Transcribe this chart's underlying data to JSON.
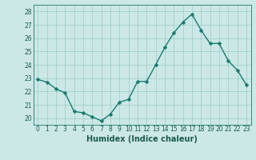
{
  "x": [
    0,
    1,
    2,
    3,
    4,
    5,
    6,
    7,
    8,
    9,
    10,
    11,
    12,
    13,
    14,
    15,
    16,
    17,
    18,
    19,
    20,
    21,
    22,
    23
  ],
  "y": [
    22.9,
    22.7,
    22.2,
    21.9,
    20.5,
    20.4,
    20.1,
    19.8,
    20.3,
    21.2,
    21.4,
    22.75,
    22.75,
    24.0,
    25.3,
    26.4,
    27.2,
    27.8,
    26.6,
    25.6,
    25.6,
    24.3,
    23.6,
    22.5
  ],
  "line_color": "#1a7a6e",
  "marker": "D",
  "marker_size": 2.5,
  "bg_color": "#cce8e6",
  "grid_color": "#99ccc8",
  "xlabel": "Humidex (Indice chaleur)",
  "ylim": [
    19.5,
    28.5
  ],
  "xlim": [
    -0.5,
    23.5
  ],
  "yticks": [
    20,
    21,
    22,
    23,
    24,
    25,
    26,
    27,
    28
  ],
  "xticks": [
    0,
    1,
    2,
    3,
    4,
    5,
    6,
    7,
    8,
    9,
    10,
    11,
    12,
    13,
    14,
    15,
    16,
    17,
    18,
    19,
    20,
    21,
    22,
    23
  ],
  "tick_label_fontsize": 5.5,
  "xlabel_fontsize": 7,
  "line_width": 1.0
}
